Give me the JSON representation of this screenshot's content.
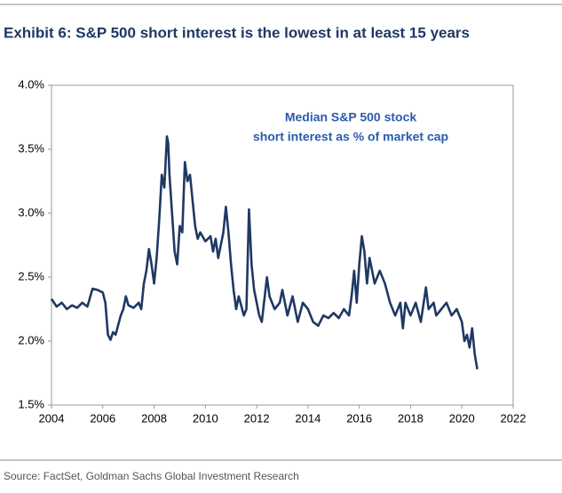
{
  "chart_data": {
    "type": "line",
    "title": "Exhibit 6: S&P 500 short interest is the lowest in at least 15 years",
    "annotation": [
      "Median S&P 500 stock",
      "short interest as % of market cap"
    ],
    "source": "Source: FactSet, Goldman Sachs Global Investment Research",
    "color": "#1f3864",
    "xlim": [
      2004,
      2022
    ],
    "xticks": [
      2004,
      2006,
      2008,
      2010,
      2012,
      2014,
      2016,
      2018,
      2020,
      2022
    ],
    "ylim": [
      1.5,
      4.0
    ],
    "yticks": [
      {
        "value": 1.5,
        "label": "1.5%"
      },
      {
        "value": 2.0,
        "label": "2.0%"
      },
      {
        "value": 2.5,
        "label": "2.5%"
      },
      {
        "value": 3.0,
        "label": "3.0%"
      },
      {
        "value": 3.5,
        "label": "3.5%"
      },
      {
        "value": 4.0,
        "label": "4.0%"
      }
    ],
    "x": [
      2004.0,
      2004.2,
      2004.4,
      2004.6,
      2004.8,
      2005.0,
      2005.2,
      2005.4,
      2005.6,
      2005.8,
      2006.0,
      2006.1,
      2006.2,
      2006.3,
      2006.4,
      2006.5,
      2006.7,
      2006.8,
      2006.9,
      2007.0,
      2007.2,
      2007.4,
      2007.5,
      2007.6,
      2007.7,
      2007.8,
      2007.9,
      2008.0,
      2008.1,
      2008.2,
      2008.3,
      2008.4,
      2008.5,
      2008.55,
      2008.6,
      2008.7,
      2008.8,
      2008.9,
      2009.0,
      2009.1,
      2009.2,
      2009.3,
      2009.4,
      2009.5,
      2009.6,
      2009.7,
      2009.8,
      2010.0,
      2010.2,
      2010.3,
      2010.4,
      2010.5,
      2010.7,
      2010.8,
      2010.9,
      2011.0,
      2011.1,
      2011.2,
      2011.3,
      2011.5,
      2011.6,
      2011.7,
      2011.8,
      2011.9,
      2012.0,
      2012.1,
      2012.2,
      2012.4,
      2012.5,
      2012.7,
      2012.9,
      2013.0,
      2013.2,
      2013.4,
      2013.6,
      2013.8,
      2014.0,
      2014.2,
      2014.4,
      2014.6,
      2014.8,
      2015.0,
      2015.2,
      2015.4,
      2015.6,
      2015.7,
      2015.8,
      2015.9,
      2016.0,
      2016.1,
      2016.2,
      2016.3,
      2016.4,
      2016.5,
      2016.6,
      2016.8,
      2017.0,
      2017.2,
      2017.4,
      2017.6,
      2017.7,
      2017.8,
      2018.0,
      2018.2,
      2018.4,
      2018.6,
      2018.7,
      2018.9,
      2019.0,
      2019.2,
      2019.4,
      2019.6,
      2019.8,
      2020.0,
      2020.1,
      2020.2,
      2020.3,
      2020.4,
      2020.5,
      2020.6
    ],
    "values": [
      2.33,
      2.27,
      2.3,
      2.25,
      2.28,
      2.26,
      2.3,
      2.27,
      2.41,
      2.4,
      2.38,
      2.3,
      2.05,
      2.01,
      2.07,
      2.05,
      2.2,
      2.25,
      2.35,
      2.28,
      2.26,
      2.3,
      2.25,
      2.45,
      2.55,
      2.72,
      2.6,
      2.45,
      2.65,
      2.95,
      3.3,
      3.2,
      3.6,
      3.55,
      3.3,
      3.0,
      2.7,
      2.6,
      2.9,
      2.85,
      3.4,
      3.25,
      3.3,
      3.1,
      2.9,
      2.8,
      2.85,
      2.78,
      2.82,
      2.7,
      2.8,
      2.65,
      2.85,
      3.05,
      2.85,
      2.6,
      2.4,
      2.25,
      2.35,
      2.2,
      2.25,
      3.03,
      2.6,
      2.4,
      2.3,
      2.2,
      2.15,
      2.5,
      2.35,
      2.25,
      2.3,
      2.4,
      2.2,
      2.35,
      2.15,
      2.3,
      2.25,
      2.15,
      2.12,
      2.2,
      2.18,
      2.22,
      2.18,
      2.25,
      2.2,
      2.35,
      2.55,
      2.3,
      2.6,
      2.82,
      2.7,
      2.45,
      2.65,
      2.55,
      2.45,
      2.55,
      2.45,
      2.3,
      2.2,
      2.3,
      2.1,
      2.3,
      2.2,
      2.3,
      2.15,
      2.42,
      2.25,
      2.3,
      2.2,
      2.25,
      2.3,
      2.2,
      2.25,
      2.15,
      2.0,
      2.05,
      1.95,
      2.1,
      1.9,
      1.78
    ]
  }
}
